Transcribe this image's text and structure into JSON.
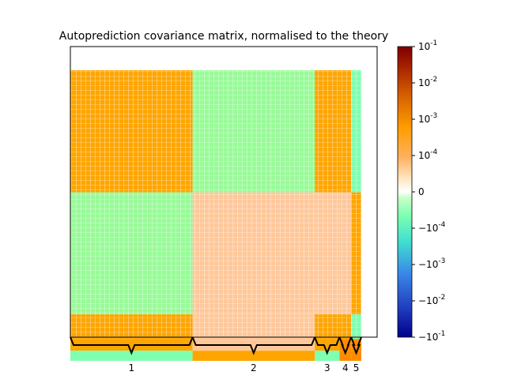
{
  "chart_data": {
    "type": "heatmap",
    "title": "Autoprediction covariance matrix, normalised to the theory",
    "colormap": "diverging symmetric-log",
    "colorbar": {
      "ticks": [
        {
          "value": 0.1,
          "label": "10^{-1}"
        },
        {
          "value": 0.01,
          "label": "10^{-2}"
        },
        {
          "value": 0.001,
          "label": "10^{-3}"
        },
        {
          "value": 0.0001,
          "label": "10^{-4}"
        },
        {
          "value": 0,
          "label": "0"
        },
        {
          "value": -0.0001,
          "label": "−10^{-4}"
        },
        {
          "value": -0.001,
          "label": "−10^{-3}"
        },
        {
          "value": -0.01,
          "label": "−10^{-2}"
        },
        {
          "value": -0.1,
          "label": "−10^{-1}"
        }
      ],
      "range": [
        -0.1,
        0.1
      ]
    },
    "groups": [
      "1",
      "2",
      "3",
      "4",
      "5"
    ],
    "block_matrix": [
      [
        0.001,
        -0.0001,
        0.001,
        0.001,
        -0.0005
      ],
      [
        -0.0001,
        0.0002,
        0.0002,
        0.0002,
        0.001
      ],
      [
        0.001,
        0.0002,
        0.002,
        0.001,
        -0.0005
      ],
      [
        0.001,
        0.0002,
        0.001,
        0.004,
        0.003
      ],
      [
        -0.0005,
        0.001,
        -0.0005,
        0.003,
        0.004
      ]
    ],
    "colors": {
      "strong_pos": "#7f0000",
      "mid_pos": "#ff8c00",
      "weak_pos": "#ffa500",
      "zero": "#ffffe0",
      "weak_neg": "#98fb98",
      "mid_neg": "#40e0d0",
      "strong_neg": "#00008b"
    }
  }
}
